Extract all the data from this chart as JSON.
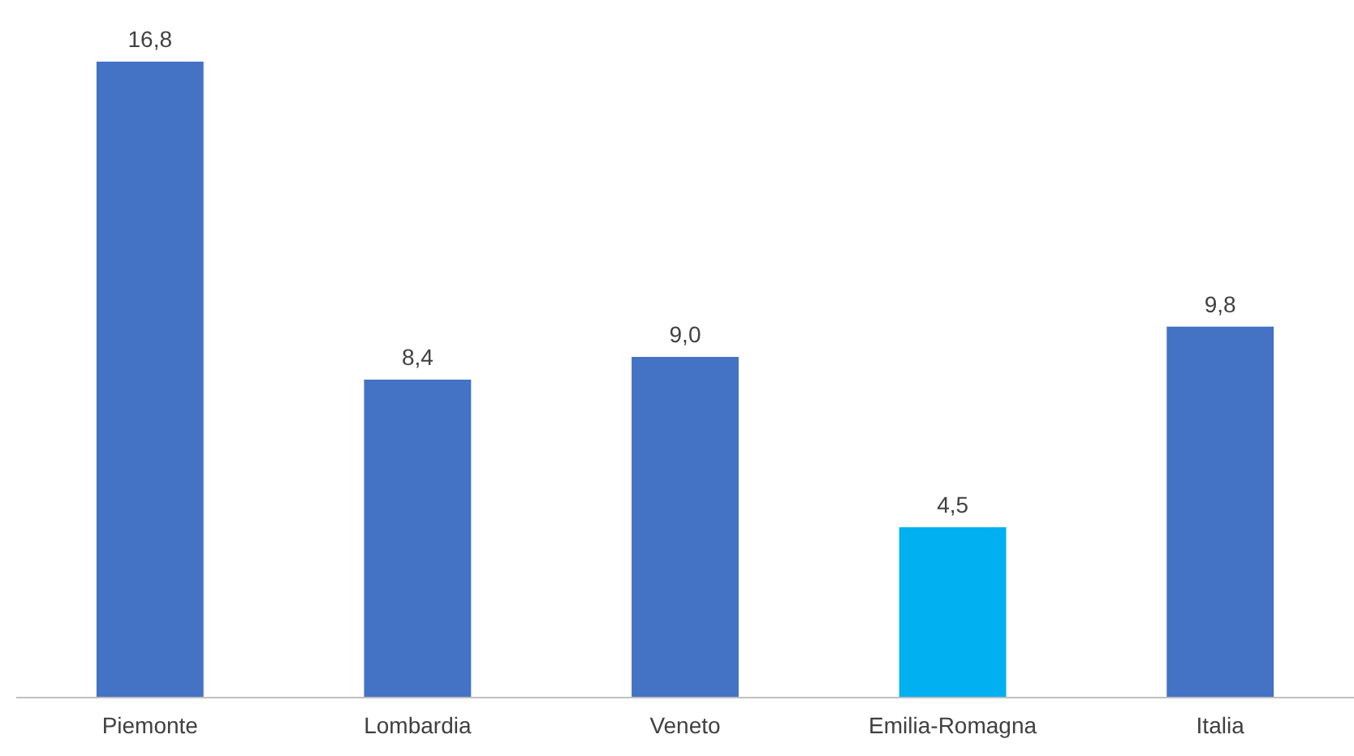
{
  "chart_data": {
    "type": "bar",
    "categories": [
      "Piemonte",
      "Lombardia",
      "Veneto",
      "Emilia-Romagna",
      "Italia"
    ],
    "values": [
      16.8,
      8.4,
      9.0,
      4.5,
      9.8
    ],
    "value_labels": [
      "16,8",
      "8,4",
      "9,0",
      "4,5",
      "9,8"
    ],
    "colors": [
      "#4472c4",
      "#4472c4",
      "#4472c4",
      "#00b0f0",
      "#4472c4"
    ]
  }
}
